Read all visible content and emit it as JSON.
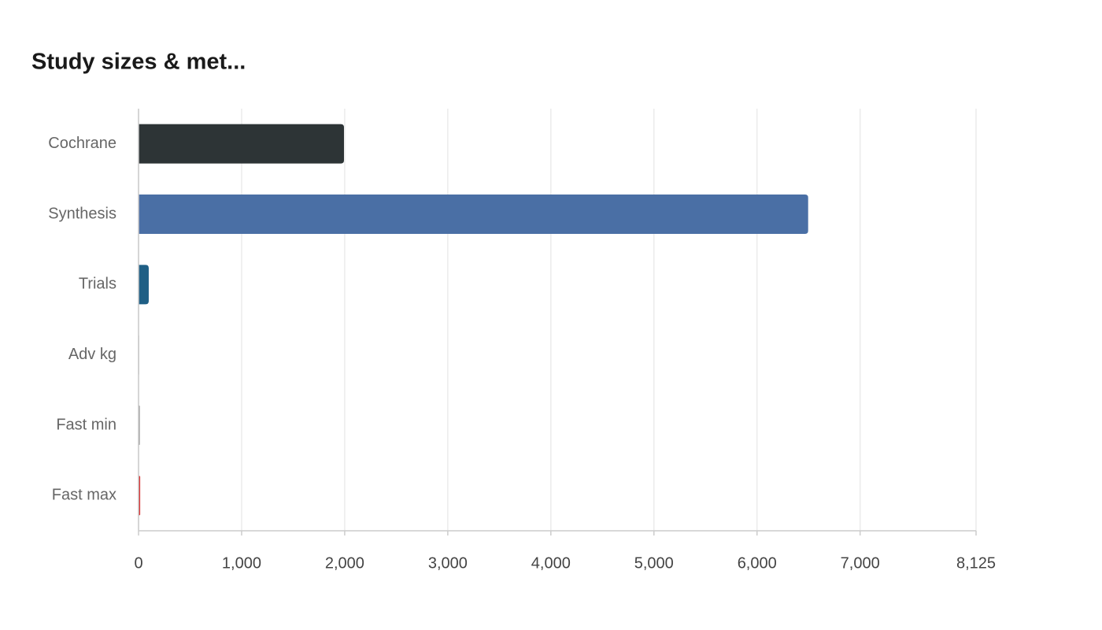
{
  "chart_data": {
    "type": "bar",
    "orientation": "horizontal",
    "title": "Study sizes & met...",
    "categories": [
      "Cochrane",
      "Synthesis",
      "Trials",
      "Adv kg",
      "Fast min",
      "Fast max"
    ],
    "values": [
      1993,
      6496,
      99,
      5,
      12,
      16
    ],
    "colors": [
      "#2d3436",
      "#4a6fa5",
      "#1f5f85",
      "#555555",
      "#888888",
      "#d63031"
    ],
    "xlim": [
      0,
      8125
    ],
    "xticks": [
      0,
      {
        "value": 1000,
        "label": "1,000"
      },
      {
        "value": 2000,
        "label": "2,000"
      },
      {
        "value": 3000,
        "label": "3,000"
      },
      {
        "value": 4000,
        "label": "4,000"
      },
      {
        "value": 5000,
        "label": "5,000"
      },
      {
        "value": 6000,
        "label": "6,000"
      },
      {
        "value": 7000,
        "label": "7,000"
      },
      {
        "value": 8125,
        "label": "8,125"
      }
    ],
    "grid": true
  }
}
